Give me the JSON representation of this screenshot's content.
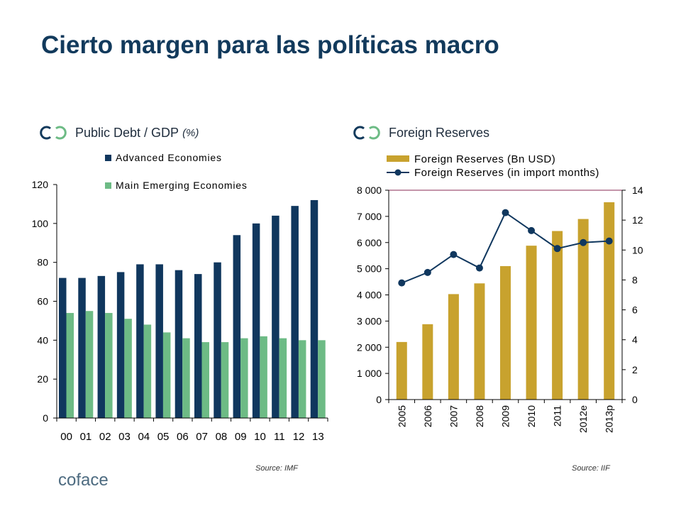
{
  "title": "Cierto margen para las políticas macro",
  "left_panel": {
    "heading": "Public Debt / GDP",
    "unit": "(%)",
    "source": "Source: IMF"
  },
  "right_panel": {
    "heading": "Foreign Reserves",
    "source": "Source: IIF"
  },
  "brand": "coface",
  "colors": {
    "title": "#123a5c",
    "advanced": "#10375e",
    "emerging": "#6dbb85",
    "reserves_bar": "#c8a22e",
    "reserves_line": "#10375e",
    "logo": "#123a5c"
  },
  "chart_data": [
    {
      "type": "bar",
      "categories": [
        "00",
        "01",
        "02",
        "03",
        "04",
        "05",
        "06",
        "07",
        "08",
        "09",
        "10",
        "11",
        "12",
        "13"
      ],
      "series": [
        {
          "name": "Advanced Economies",
          "values": [
            72,
            72,
            73,
            75,
            79,
            79,
            76,
            74,
            80,
            94,
            100,
            104,
            109,
            112
          ]
        },
        {
          "name": "Main Emerging Economies",
          "values": [
            54,
            55,
            54,
            51,
            48,
            44,
            41,
            39,
            39,
            41,
            42,
            41,
            40,
            40
          ]
        }
      ],
      "ylim": [
        0,
        120
      ],
      "yticks": [
        "0",
        "20",
        "40",
        "60",
        "80",
        "100",
        "120"
      ],
      "legend": "top-right",
      "grid": false
    },
    {
      "type": "bar+line",
      "categories": [
        "2005",
        "2006",
        "2007",
        "2008",
        "2009",
        "2010",
        "2011",
        "2012e",
        "2013p"
      ],
      "series": [
        {
          "name": "Foreign Reserves (Bn USD)",
          "type": "bar",
          "axis": "left",
          "values": [
            2200,
            2880,
            4030,
            4440,
            5100,
            5880,
            6440,
            6900,
            7540
          ]
        },
        {
          "name": "Foreign Reserves (in import months)",
          "type": "line",
          "axis": "right",
          "values": [
            7.8,
            8.5,
            9.7,
            8.8,
            12.5,
            11.3,
            10.1,
            10.5,
            10.6
          ]
        }
      ],
      "ylim_left": [
        0,
        8000
      ],
      "yticks_left": [
        "0",
        "1 000",
        "2 000",
        "3 000",
        "4 000",
        "5 000",
        "6 000",
        "7 000",
        "8 000"
      ],
      "ylim_right": [
        0,
        14
      ],
      "yticks_right": [
        "0",
        "2",
        "4",
        "6",
        "8",
        "10",
        "12",
        "14"
      ],
      "legend": "top",
      "grid": false
    }
  ]
}
